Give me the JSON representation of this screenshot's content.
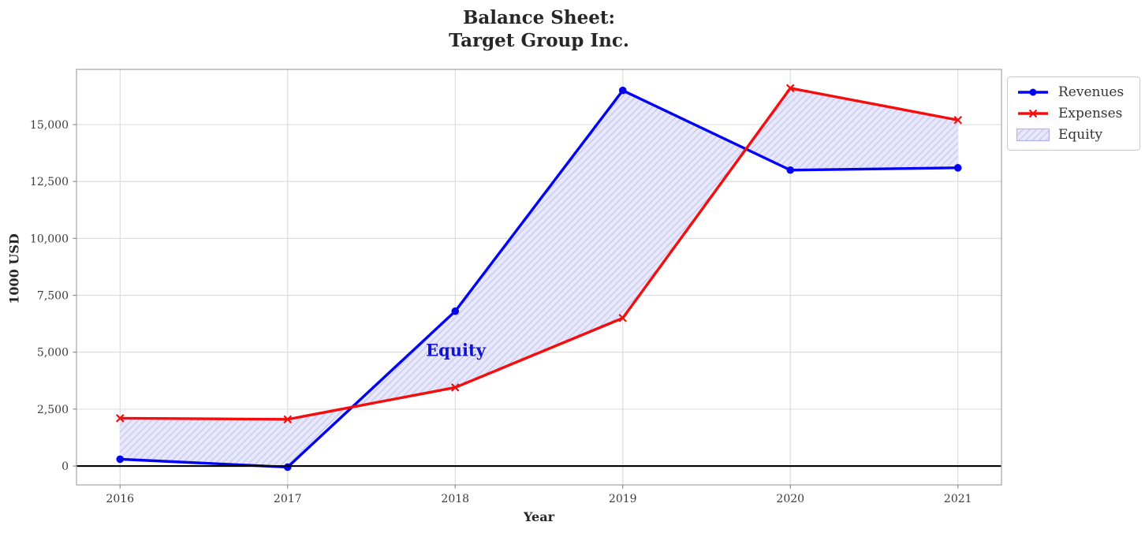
{
  "chart_data": {
    "type": "line",
    "title": "Balance Sheet:\nTarget Group Inc.",
    "xlabel": "Year",
    "ylabel": "1000 USD",
    "x": [
      2016,
      2017,
      2018,
      2019,
      2020,
      2021
    ],
    "xtick_labels": [
      "2016",
      "2017",
      "2018",
      "2019",
      "2020",
      "2021"
    ],
    "series": [
      {
        "name": "Revenues",
        "color": "#0202f2",
        "marker": "circle",
        "values": [
          300,
          -50,
          6800,
          16500,
          13000,
          13100
        ]
      },
      {
        "name": "Expenses",
        "color": "#f50d0d",
        "marker": "x",
        "values": [
          2100,
          2050,
          3450,
          6500,
          16600,
          15200
        ]
      }
    ],
    "equity_fill": {
      "label": "Equity",
      "between": [
        "Revenues",
        "Expenses"
      ],
      "fill_color": "#e8e8fb",
      "hatch_color": "#c6c6f2",
      "edge_color": "#b2b2e8"
    },
    "annotation": {
      "text": "Equity",
      "color": "#1212d4",
      "x": 2018.0,
      "y": 5100
    },
    "axes": {
      "xlim": [
        2015.74,
        2021.26
      ],
      "ylim": [
        -830,
        17425
      ],
      "yticks": [
        0,
        2500,
        5000,
        7500,
        10000,
        12500,
        15000
      ],
      "ytick_labels": [
        "0",
        "2,500",
        "5,000",
        "7,500",
        "10,000",
        "12,500",
        "15,000"
      ],
      "grid": true,
      "zero_line": 0,
      "zero_line_color": "#000000",
      "grid_color": "#d9d9d9",
      "spine_color": "#aaaaaa",
      "tick_color": "#8a8a8a",
      "tick_label_color": "#3b3b3b"
    },
    "legend": {
      "position": "outside-upper-right",
      "entries": [
        "Revenues",
        "Expenses",
        "Equity"
      ]
    }
  }
}
